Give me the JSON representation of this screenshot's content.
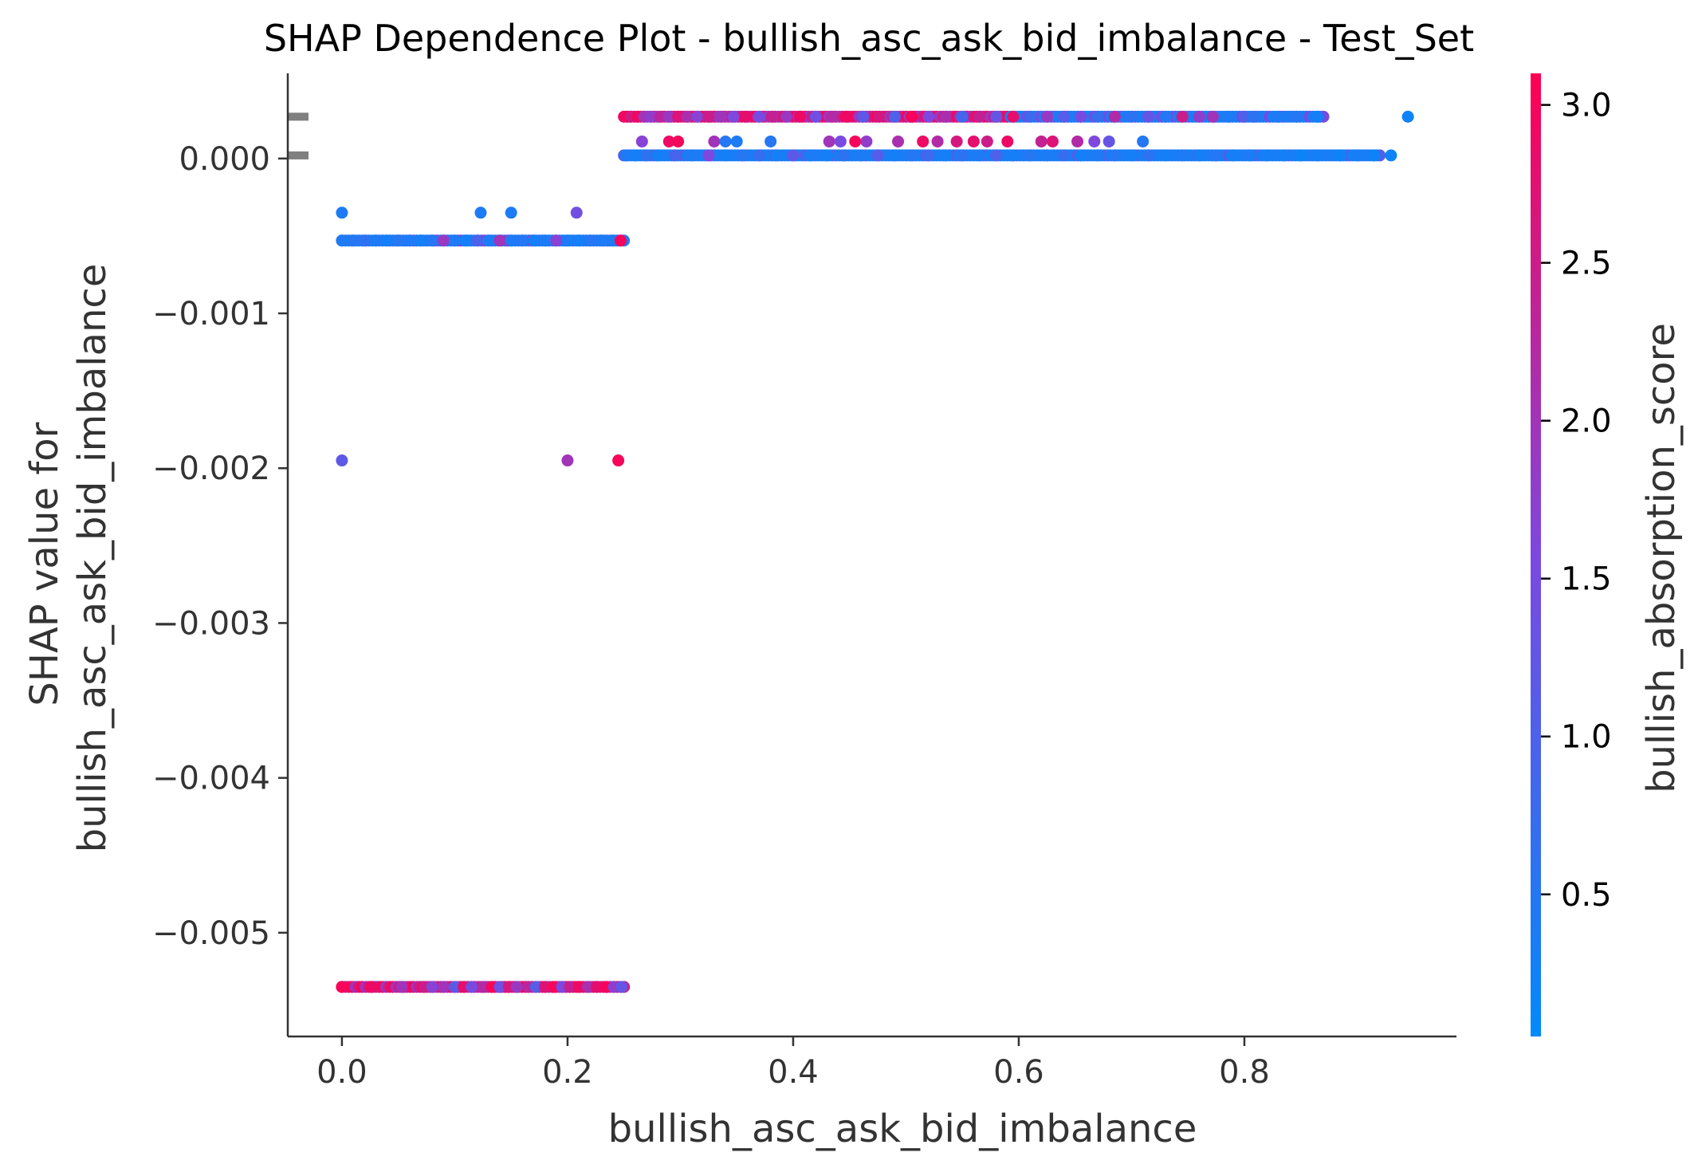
{
  "chart_data": {
    "type": "scatter",
    "title": "SHAP Dependence Plot - bullish_asc_ask_bid_imbalance - Test_Set",
    "xlabel": "bullish_asc_ask_bid_imbalance",
    "ylabel_lines": [
      "SHAP value for",
      "bullish_asc_ask_bid_imbalance"
    ],
    "xlim": [
      -0.048,
      0.988
    ],
    "ylim": [
      -0.00567,
      0.00055
    ],
    "x_ticks": [
      0.0,
      0.2,
      0.4,
      0.6,
      0.8
    ],
    "x_tick_labels": [
      "0.0",
      "0.2",
      "0.4",
      "0.6",
      "0.8"
    ],
    "y_ticks": [
      0.0,
      -0.001,
      -0.002,
      -0.003,
      -0.004,
      -0.005
    ],
    "y_tick_labels": [
      "0.000",
      "−0.001",
      "−0.002",
      "−0.003",
      "−0.004",
      "−0.005"
    ],
    "grid": false,
    "histogram_marks_y": [
      0.00027,
      2e-05
    ],
    "colorbar": {
      "label": "bullish_absorption_score",
      "range": [
        0.05,
        3.1
      ],
      "ticks": [
        0.5,
        1.0,
        1.5,
        2.0,
        2.5,
        3.0
      ],
      "tick_labels": [
        "0.5",
        "1.0",
        "1.5",
        "2.0",
        "2.5",
        "3.0"
      ],
      "colormap": [
        "#008afb",
        "#ff0051"
      ]
    },
    "bands": [
      {
        "y": 0.00027,
        "x_range": [
          0.25,
          0.87
        ],
        "color_trend": "mixed pink/magenta at low x, blue at high x"
      },
      {
        "y": 2e-05,
        "x_range": [
          0.25,
          0.92
        ],
        "color_trend": "mostly blue"
      },
      {
        "y": -0.00053,
        "x_range": [
          0.0,
          0.25
        ],
        "color_trend": "mostly blue with some magenta"
      },
      {
        "y": -0.00535,
        "x_range": [
          0.0,
          0.25
        ],
        "color_trend": "mostly pink/magenta"
      }
    ],
    "points": [
      [
        0.253,
        0.00027,
        3.0
      ],
      [
        0.256,
        0.00027,
        2.6
      ],
      [
        0.262,
        0.00027,
        2.9
      ],
      [
        0.268,
        0.00027,
        2.0
      ],
      [
        0.274,
        0.00027,
        1.8
      ],
      [
        0.282,
        0.00027,
        2.3
      ],
      [
        0.29,
        0.00027,
        1.9
      ],
      [
        0.298,
        0.00027,
        2.7
      ],
      [
        0.306,
        0.00027,
        2.1
      ],
      [
        0.315,
        0.00027,
        1.7
      ],
      [
        0.325,
        0.00027,
        2.5
      ],
      [
        0.336,
        0.00027,
        2.0
      ],
      [
        0.347,
        0.00027,
        1.6
      ],
      [
        0.358,
        0.00027,
        2.8
      ],
      [
        0.37,
        0.00027,
        1.5
      ],
      [
        0.382,
        0.00027,
        2.4
      ],
      [
        0.394,
        0.00027,
        1.9
      ],
      [
        0.406,
        0.00027,
        2.9
      ],
      [
        0.42,
        0.00027,
        1.4
      ],
      [
        0.434,
        0.00027,
        2.2
      ],
      [
        0.448,
        0.00027,
        2.9
      ],
      [
        0.462,
        0.00027,
        1.2
      ],
      [
        0.476,
        0.00027,
        2.6
      ],
      [
        0.49,
        0.00027,
        1.0
      ],
      [
        0.505,
        0.00027,
        3.0
      ],
      [
        0.52,
        0.00027,
        1.6
      ],
      [
        0.535,
        0.00027,
        2.1
      ],
      [
        0.55,
        0.00027,
        0.9
      ],
      [
        0.565,
        0.00027,
        2.4
      ],
      [
        0.58,
        0.00027,
        1.3
      ],
      [
        0.595,
        0.00027,
        2.8
      ],
      [
        0.61,
        0.00027,
        0.8
      ],
      [
        0.625,
        0.00027,
        1.9
      ],
      [
        0.64,
        0.00027,
        1.1
      ],
      [
        0.655,
        0.00027,
        1.5
      ],
      [
        0.67,
        0.00027,
        0.7
      ],
      [
        0.685,
        0.00027,
        2.2
      ],
      [
        0.7,
        0.00027,
        0.6
      ],
      [
        0.715,
        0.00027,
        1.3
      ],
      [
        0.73,
        0.00027,
        0.5
      ],
      [
        0.745,
        0.00027,
        2.5
      ],
      [
        0.76,
        0.00027,
        1.8
      ],
      [
        0.772,
        0.00027,
        2.0
      ],
      [
        0.786,
        0.00027,
        0.4
      ],
      [
        0.8,
        0.00027,
        1.0
      ],
      [
        0.808,
        0.00027,
        0.6
      ],
      [
        0.83,
        0.00027,
        0.4
      ],
      [
        0.846,
        0.00027,
        0.5
      ],
      [
        0.865,
        0.00027,
        0.3
      ],
      [
        0.945,
        0.00027,
        0.2
      ],
      [
        0.266,
        0.00011,
        1.7
      ],
      [
        0.29,
        0.00011,
        2.9
      ],
      [
        0.298,
        0.00011,
        3.0
      ],
      [
        0.33,
        0.00011,
        2.0
      ],
      [
        0.34,
        0.00011,
        0.5
      ],
      [
        0.35,
        0.00011,
        0.4
      ],
      [
        0.38,
        0.00011,
        0.5
      ],
      [
        0.432,
        0.00011,
        2.0
      ],
      [
        0.442,
        0.00011,
        1.5
      ],
      [
        0.455,
        0.00011,
        3.0
      ],
      [
        0.465,
        0.00011,
        1.8
      ],
      [
        0.493,
        0.00011,
        2.1
      ],
      [
        0.515,
        0.00011,
        2.9
      ],
      [
        0.528,
        0.00011,
        2.2
      ],
      [
        0.545,
        0.00011,
        2.6
      ],
      [
        0.56,
        0.00011,
        2.8
      ],
      [
        0.572,
        0.00011,
        2.5
      ],
      [
        0.59,
        0.00011,
        2.9
      ],
      [
        0.62,
        0.00011,
        2.4
      ],
      [
        0.63,
        0.00011,
        2.7
      ],
      [
        0.652,
        0.00011,
        2.2
      ],
      [
        0.667,
        0.00011,
        1.6
      ],
      [
        0.68,
        0.00011,
        1.3
      ],
      [
        0.71,
        0.00011,
        0.5
      ],
      [
        0.252,
        2e-05,
        0.4
      ],
      [
        0.26,
        2e-05,
        0.3
      ],
      [
        0.27,
        2e-05,
        0.6
      ],
      [
        0.28,
        2e-05,
        0.3
      ],
      [
        0.295,
        2e-05,
        0.9
      ],
      [
        0.31,
        2e-05,
        0.4
      ],
      [
        0.325,
        2e-05,
        1.6
      ],
      [
        0.34,
        2e-05,
        0.3
      ],
      [
        0.355,
        2e-05,
        0.5
      ],
      [
        0.37,
        2e-05,
        0.7
      ],
      [
        0.385,
        2e-05,
        0.3
      ],
      [
        0.4,
        2e-05,
        1.2
      ],
      [
        0.415,
        2e-05,
        0.4
      ],
      [
        0.43,
        2e-05,
        0.3
      ],
      [
        0.445,
        2e-05,
        0.6
      ],
      [
        0.46,
        2e-05,
        0.4
      ],
      [
        0.475,
        2e-05,
        1.1
      ],
      [
        0.49,
        2e-05,
        0.3
      ],
      [
        0.505,
        2e-05,
        0.5
      ],
      [
        0.52,
        2e-05,
        0.8
      ],
      [
        0.535,
        2e-05,
        0.3
      ],
      [
        0.55,
        2e-05,
        0.6
      ],
      [
        0.565,
        2e-05,
        0.4
      ],
      [
        0.58,
        2e-05,
        1.0
      ],
      [
        0.595,
        2e-05,
        0.3
      ],
      [
        0.61,
        2e-05,
        0.5
      ],
      [
        0.625,
        2e-05,
        0.4
      ],
      [
        0.64,
        2e-05,
        0.7
      ],
      [
        0.655,
        2e-05,
        0.3
      ],
      [
        0.67,
        2e-05,
        0.4
      ],
      [
        0.685,
        2e-05,
        0.5
      ],
      [
        0.7,
        2e-05,
        0.3
      ],
      [
        0.715,
        2e-05,
        0.6
      ],
      [
        0.73,
        2e-05,
        0.3
      ],
      [
        0.745,
        2e-05,
        0.4
      ],
      [
        0.76,
        2e-05,
        0.3
      ],
      [
        0.775,
        2e-05,
        0.5
      ],
      [
        0.79,
        2e-05,
        0.3
      ],
      [
        0.805,
        2e-05,
        0.4
      ],
      [
        0.82,
        2e-05,
        0.3
      ],
      [
        0.835,
        2e-05,
        0.3
      ],
      [
        0.85,
        2e-05,
        0.2
      ],
      [
        0.865,
        2e-05,
        0.3
      ],
      [
        0.885,
        2e-05,
        0.2
      ],
      [
        0.9,
        2e-05,
        0.3
      ],
      [
        0.915,
        2e-05,
        0.2
      ],
      [
        0.93,
        2e-05,
        0.2
      ],
      [
        0.0,
        -0.00035,
        0.4
      ],
      [
        0.123,
        -0.00035,
        0.4
      ],
      [
        0.15,
        -0.00035,
        0.4
      ],
      [
        0.208,
        -0.00035,
        1.4
      ],
      [
        0.0,
        -0.00053,
        0.4
      ],
      [
        0.01,
        -0.00053,
        0.5
      ],
      [
        0.02,
        -0.00053,
        0.6
      ],
      [
        0.03,
        -0.00053,
        0.4
      ],
      [
        0.04,
        -0.00053,
        0.3
      ],
      [
        0.05,
        -0.00053,
        0.5
      ],
      [
        0.06,
        -0.00053,
        0.4
      ],
      [
        0.07,
        -0.00053,
        0.3
      ],
      [
        0.08,
        -0.00053,
        0.5
      ],
      [
        0.09,
        -0.00053,
        1.9
      ],
      [
        0.1,
        -0.00053,
        0.4
      ],
      [
        0.11,
        -0.00053,
        0.3
      ],
      [
        0.12,
        -0.00053,
        1.0
      ],
      [
        0.13,
        -0.00053,
        0.4
      ],
      [
        0.14,
        -0.00053,
        2.0
      ],
      [
        0.15,
        -0.00053,
        0.4
      ],
      [
        0.16,
        -0.00053,
        0.5
      ],
      [
        0.17,
        -0.00053,
        0.3
      ],
      [
        0.18,
        -0.00053,
        0.4
      ],
      [
        0.19,
        -0.00053,
        1.7
      ],
      [
        0.2,
        -0.00053,
        0.4
      ],
      [
        0.21,
        -0.00053,
        0.3
      ],
      [
        0.22,
        -0.00053,
        0.5
      ],
      [
        0.23,
        -0.00053,
        0.4
      ],
      [
        0.24,
        -0.00053,
        0.4
      ],
      [
        0.247,
        -0.00053,
        3.0
      ],
      [
        0.0,
        -0.00195,
        1.2
      ],
      [
        0.2,
        -0.00195,
        2.0
      ],
      [
        0.245,
        -0.00195,
        3.0
      ],
      [
        0.0,
        -0.00535,
        3.0
      ],
      [
        0.026,
        -0.00535,
        2.9
      ],
      [
        0.053,
        -0.00535,
        2.0
      ],
      [
        0.073,
        -0.00535,
        2.5
      ],
      [
        0.08,
        -0.00535,
        1.7
      ],
      [
        0.09,
        -0.00535,
        2.0
      ],
      [
        0.1,
        -0.00535,
        1.2
      ],
      [
        0.108,
        -0.00535,
        2.8
      ],
      [
        0.115,
        -0.00535,
        1.5
      ],
      [
        0.125,
        -0.00535,
        2.2
      ],
      [
        0.133,
        -0.00535,
        3.0
      ],
      [
        0.14,
        -0.00535,
        1.4
      ],
      [
        0.148,
        -0.00535,
        2.6
      ],
      [
        0.155,
        -0.00535,
        1.9
      ],
      [
        0.165,
        -0.00535,
        2.3
      ],
      [
        0.172,
        -0.00535,
        1.1
      ],
      [
        0.18,
        -0.00535,
        2.7
      ],
      [
        0.188,
        -0.00535,
        3.0
      ],
      [
        0.195,
        -0.00535,
        1.6
      ],
      [
        0.202,
        -0.00535,
        2.4
      ],
      [
        0.21,
        -0.00535,
        2.9
      ],
      [
        0.218,
        -0.00535,
        2.1
      ],
      [
        0.226,
        -0.00535,
        2.8
      ],
      [
        0.234,
        -0.00535,
        3.0
      ],
      [
        0.241,
        -0.00535,
        1.8
      ],
      [
        0.248,
        -0.00535,
        1.3
      ]
    ]
  }
}
